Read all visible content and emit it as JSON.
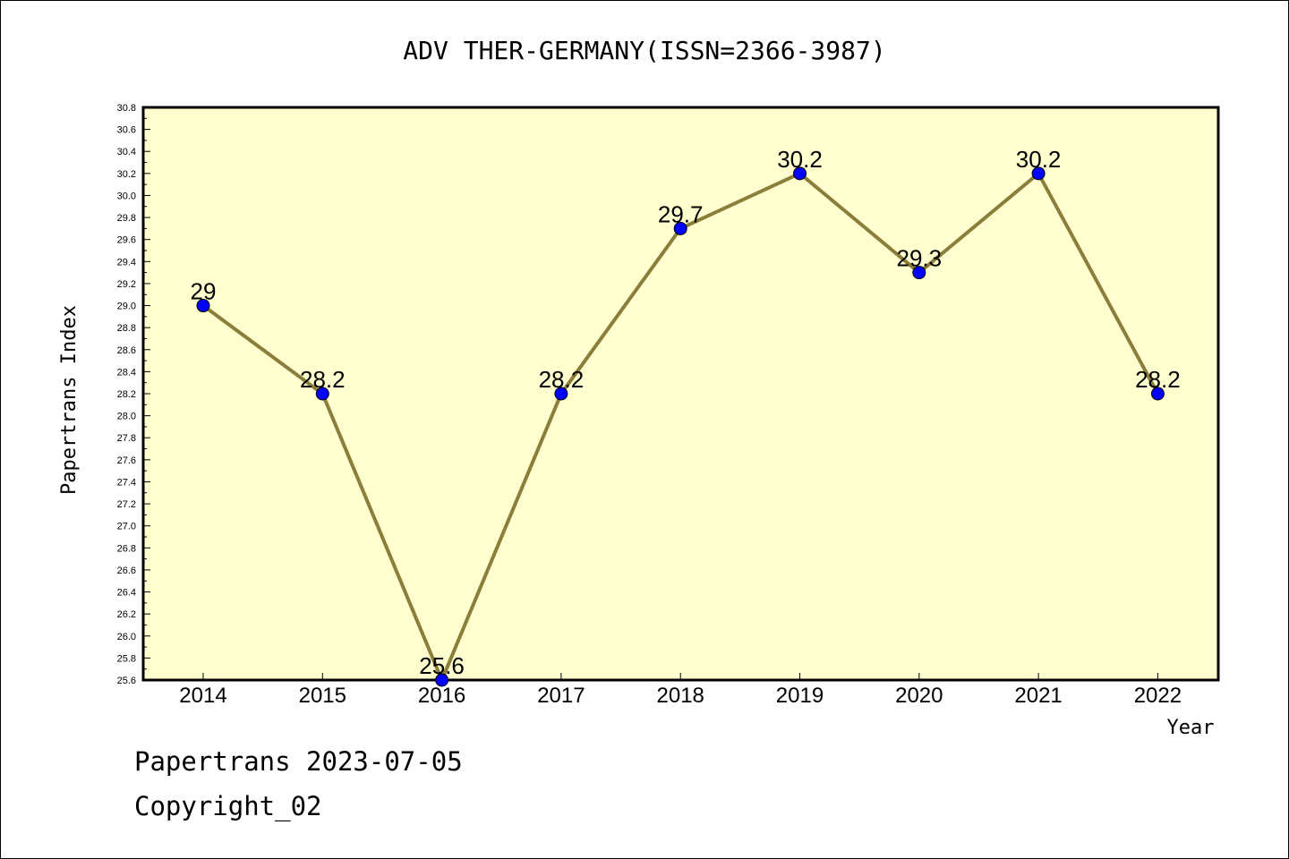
{
  "chart_data": {
    "type": "line",
    "title": "ADV THER-GERMANY(ISSN=2366-3987)",
    "xlabel": "Year",
    "ylabel": "Papertrans Index",
    "x": [
      "2014",
      "2015",
      "2016",
      "2017",
      "2018",
      "2019",
      "2020",
      "2021",
      "2022"
    ],
    "values": [
      29.0,
      28.2,
      25.6,
      28.2,
      29.7,
      30.2,
      29.3,
      30.2,
      28.2
    ],
    "data_labels": [
      "29",
      "28.2",
      "25.6",
      "28.2",
      "29.7",
      "30.2",
      "29.3",
      "30.2",
      "28.2"
    ],
    "ylim": [
      25.6,
      30.8
    ],
    "yticks": [
      "25.6",
      "25.8",
      "26.0",
      "26.2",
      "26.4",
      "26.6",
      "26.8",
      "27.0",
      "27.2",
      "27.4",
      "27.6",
      "27.8",
      "28.0",
      "28.2",
      "28.4",
      "28.6",
      "28.8",
      "29.0",
      "29.2",
      "29.4",
      "29.6",
      "29.8",
      "30.0",
      "30.2",
      "30.4",
      "30.6",
      "30.8"
    ],
    "grid": false,
    "colors": {
      "plot_background": "#ffffd0",
      "line": "#8b7d3a",
      "marker": "#0000ff"
    }
  },
  "footer": {
    "date_line": "Papertrans 2023-07-05",
    "copyright": "Copyright_02"
  }
}
